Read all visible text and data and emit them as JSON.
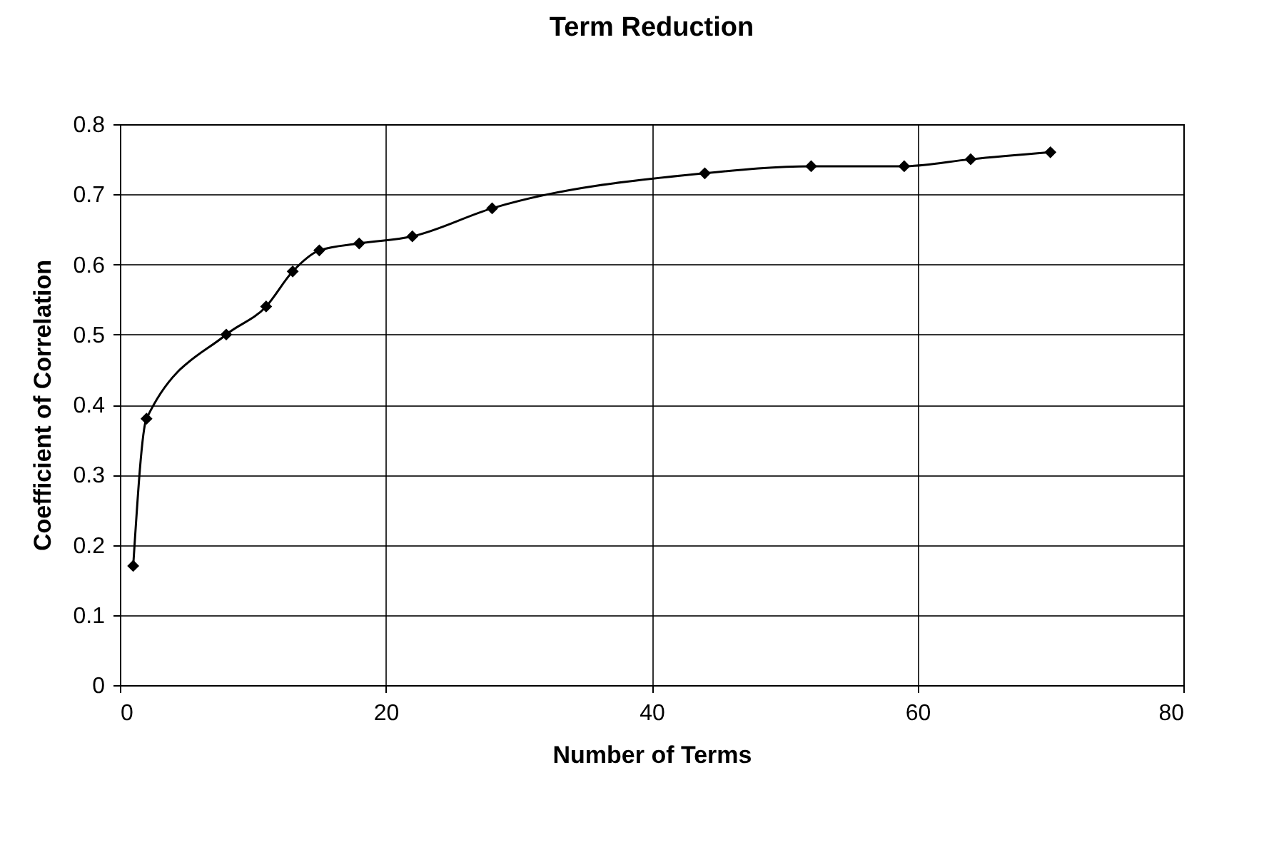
{
  "chart_data": {
    "type": "line",
    "title": "Term Reduction",
    "xlabel": "Number of Terms",
    "ylabel": "Coefficient of Correlation",
    "x": [
      1,
      2,
      8,
      11,
      13,
      15,
      18,
      22,
      28,
      44,
      52,
      59,
      64,
      70
    ],
    "series": [
      {
        "color": "#000000",
        "values": [
          0.17,
          0.38,
          0.5,
          0.54,
          0.59,
          0.62,
          0.63,
          0.64,
          0.68,
          0.73,
          0.74,
          0.74,
          0.75,
          0.76
        ]
      }
    ],
    "xlim": [
      0,
      80
    ],
    "xticks": [
      0,
      20,
      40,
      60,
      80
    ],
    "ylim": [
      0,
      0.8
    ],
    "yticks": [
      0,
      0.1,
      0.2,
      0.3,
      0.4,
      0.5,
      0.6,
      0.7,
      0.8
    ],
    "grid": true,
    "marker": "diamond",
    "line_style": "solid"
  }
}
